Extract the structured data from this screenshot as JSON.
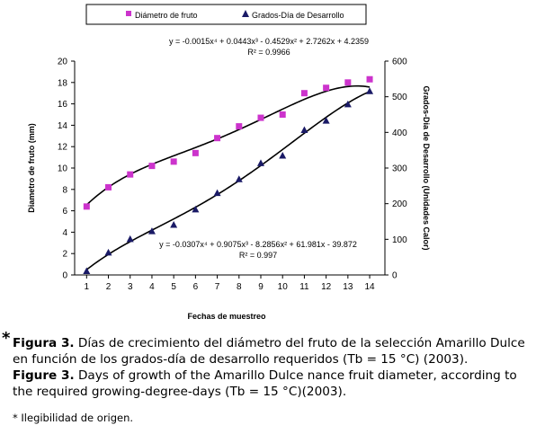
{
  "chart_data": {
    "type": "scatter",
    "categories": [
      "1",
      "2",
      "3",
      "4",
      "5",
      "6",
      "7",
      "8",
      "9",
      "10",
      "11",
      "12",
      "13",
      "14"
    ],
    "x": [
      1,
      2,
      3,
      4,
      5,
      6,
      7,
      8,
      9,
      10,
      11,
      12,
      13,
      14
    ],
    "xlabel": "Fechas de muestreo",
    "ylabel": "Diametro de fruto (mm)",
    "y2label": "Grados-Dia de Desarrollo (Unidades Calor)",
    "ylim": [
      0,
      20
    ],
    "y2lim": [
      0,
      600
    ],
    "yticks": [
      "0",
      "2",
      "4",
      "6",
      "8",
      "10",
      "12",
      "14",
      "16",
      "18",
      "20"
    ],
    "y2ticks": [
      "0",
      "100",
      "200",
      "300",
      "400",
      "500",
      "600"
    ],
    "legend_position": "top",
    "series": [
      {
        "name": "Diámetro de fruto",
        "axis": "left",
        "marker": "square",
        "color": "#cc33cc",
        "values": [
          6.4,
          8.2,
          9.4,
          10.2,
          10.6,
          11.4,
          12.8,
          13.9,
          14.7,
          15.0,
          17.0,
          17.5,
          18.0,
          18.3
        ],
        "trend_equation": "y = -0.0015x⁴ + 0.0443x³ - 0.4529x² + 2.7262x + 4.2359",
        "trend_r2": "R² = 0.9966"
      },
      {
        "name": "Grados-Día de Desarrollo",
        "axis": "right",
        "marker": "triangle",
        "color": "#1a1a66",
        "values": [
          10,
          62,
          100,
          122,
          140,
          183,
          229,
          268,
          313,
          334,
          406,
          432,
          478,
          515
        ],
        "trend_equation": "y = -0.0307x⁴ + 0.9075x³ - 8.2856x² + 61.981x - 39.872",
        "trend_r2": "R² = 0.997"
      }
    ]
  },
  "caption": {
    "es_label": "Figura 3.",
    "es_text": "Días de crecimiento del diámetro del fruto de la selección Amarillo Dulce en función de los grados-día de desarrollo requeridos (Tb = 15 °C) (2003).",
    "en_label": "Figure 3.",
    "en_text": "Days of growth of the Amarillo Dulce nance fruit diameter, according to the required growing-degree-days (Tb = 15 °C)(2003)."
  },
  "star": "*",
  "footnote": "* Ilegibilidad de origen."
}
